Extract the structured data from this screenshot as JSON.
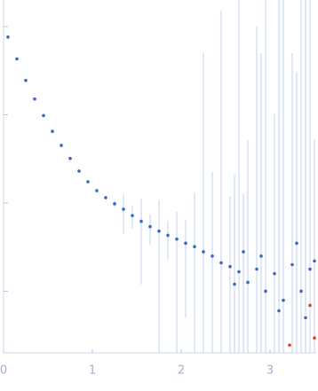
{
  "chart_data": {
    "type": "scatter",
    "log_y": true,
    "xlim": [
      0,
      3.52
    ],
    "ylim": [
      0.0002,
      2
    ],
    "xticks": [
      0,
      1,
      2,
      3
    ],
    "yticks": [
      0.001,
      0.01,
      0.1,
      1
    ],
    "series": [
      {
        "color": "#3a68c0",
        "error_color": "#bfd0ea",
        "x": [
          0.05,
          0.15,
          0.25,
          0.35,
          0.45,
          0.55,
          0.65,
          0.75,
          0.85,
          0.95,
          1.05,
          1.15,
          1.25,
          1.35,
          1.45,
          1.55,
          1.65,
          1.75,
          1.85,
          1.95,
          2.05,
          2.15,
          2.25,
          2.35,
          2.45,
          2.55,
          2.65,
          2.75,
          2.85,
          2.95,
          3.05,
          3.15,
          3.25,
          3.35,
          3.45,
          2.6,
          2.9,
          3.1,
          3.3,
          3.4,
          3.5,
          2.7
        ],
        "values": [
          0.76,
          0.43,
          0.245,
          0.151,
          0.098,
          0.065,
          0.045,
          0.032,
          0.023,
          0.0174,
          0.0138,
          0.0115,
          0.0098,
          0.0085,
          0.0072,
          0.0062,
          0.0054,
          0.0048,
          0.0043,
          0.0039,
          0.0035,
          0.0032,
          0.0028,
          0.0025,
          0.0021,
          0.0019,
          0.00166,
          0.00126,
          0.00178,
          0.001,
          0.00158,
          0.00079,
          0.002,
          0.001,
          0.00178,
          0.0012,
          0.0025,
          0.0006,
          0.0035,
          0.0005,
          0.0022,
          0.0028
        ],
        "errors": [
          0.01,
          0.005,
          0.003,
          0.002,
          0.001,
          0.001,
          0.0007,
          0.0005,
          0.0004,
          0.0003,
          0.0003,
          0.0005,
          0.0008,
          0.004,
          0.002,
          0.005,
          0.002,
          0.006,
          0.002,
          0.004,
          0.003,
          0.01,
          0.5,
          0.02,
          1.5,
          0.01,
          2,
          0.05,
          1,
          2,
          0.1,
          2,
          0.5,
          2,
          2,
          0.02,
          0.5,
          2,
          0.3,
          2,
          0.05,
          0.01
        ]
      },
      {
        "color": "#d9402a",
        "x": [
          3.45,
          3.22,
          3.5
        ],
        "values": [
          0.00069,
          0.000245,
          0.000295
        ]
      }
    ]
  }
}
